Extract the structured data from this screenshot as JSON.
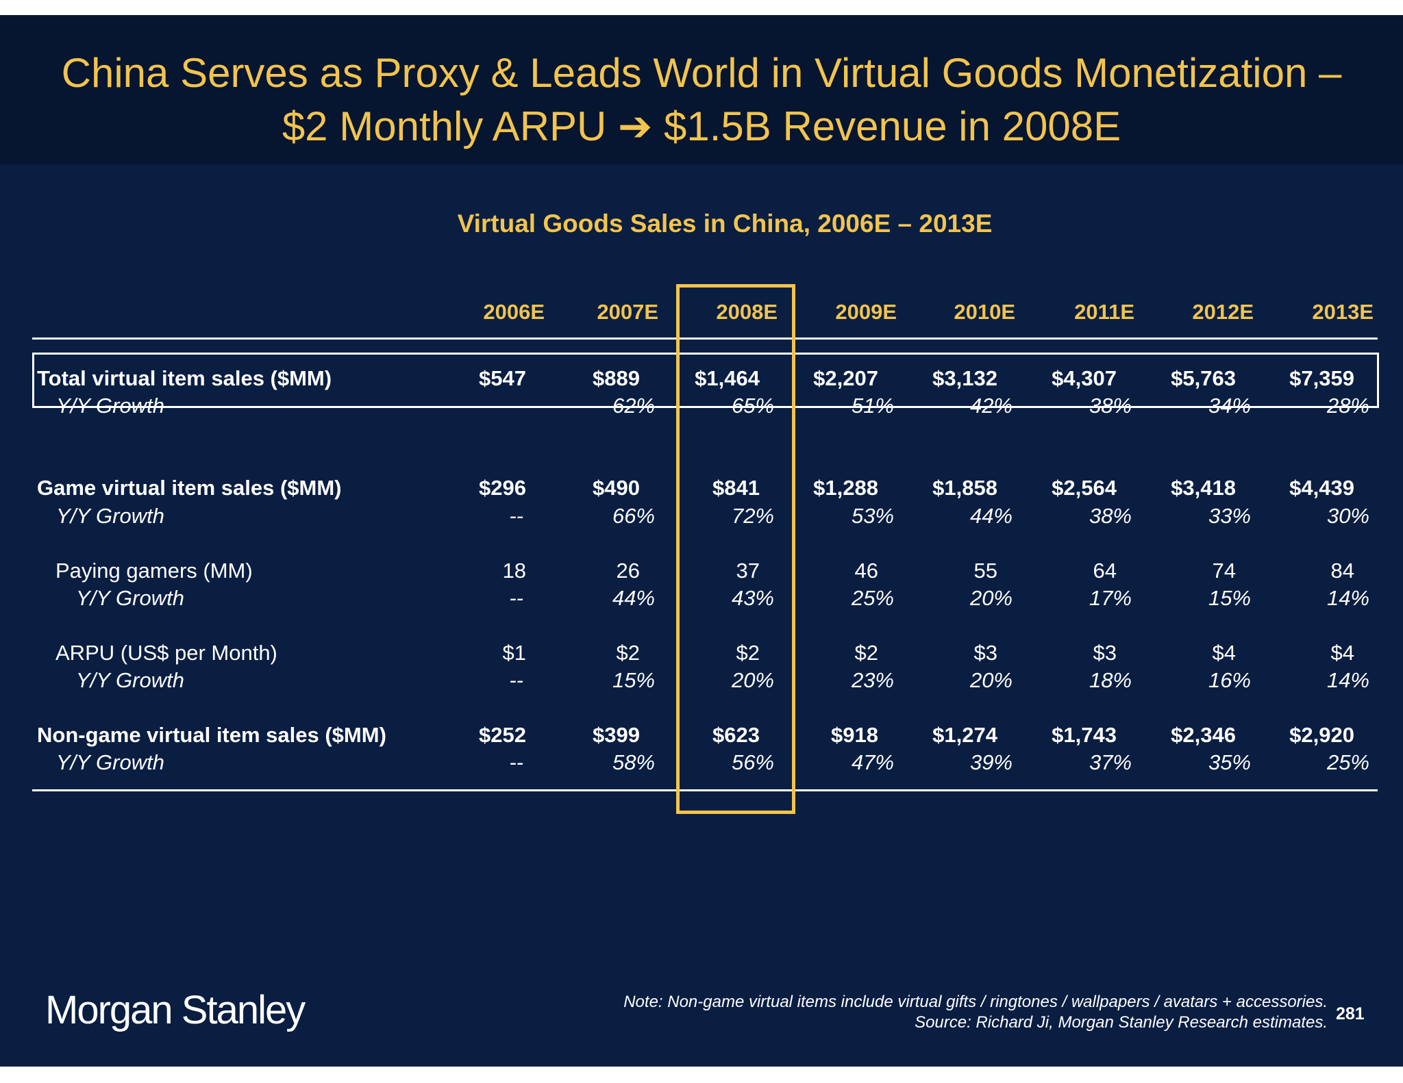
{
  "title": {
    "line1": "China Serves as Proxy & Leads World in Virtual Goods Monetization –",
    "line2": "$2 Monthly ARPU ➔ $1.5B Revenue in 2008E"
  },
  "table": {
    "title": "Virtual Goods Sales in China, 2006E – 2013E",
    "columns": [
      "2006E",
      "2007E",
      "2008E",
      "2009E",
      "2010E",
      "2011E",
      "2012E",
      "2013E"
    ],
    "highlighted_column": "2008E",
    "highlight_color": "#f2c44e",
    "rows": [
      {
        "label": "Total virtual item sales ($MM)",
        "style": "bold",
        "indent": 0,
        "values": [
          "$547",
          "$889",
          "$1,464",
          "$2,207",
          "$3,132",
          "$4,307",
          "$5,763",
          "$7,359"
        ]
      },
      {
        "label": "Y/Y Growth",
        "style": "italic",
        "indent": 1,
        "values": [
          "--",
          "62%",
          "65%",
          "51%",
          "42%",
          "38%",
          "34%",
          "28%"
        ]
      },
      {
        "label": "Game virtual item sales ($MM)",
        "style": "bold",
        "indent": 0,
        "values": [
          "$296",
          "$490",
          "$841",
          "$1,288",
          "$1,858",
          "$2,564",
          "$3,418",
          "$4,439"
        ]
      },
      {
        "label": "Y/Y Growth",
        "style": "italic",
        "indent": 1,
        "values": [
          "--",
          "66%",
          "72%",
          "53%",
          "44%",
          "38%",
          "33%",
          "30%"
        ]
      },
      {
        "label": "Paying gamers (MM)",
        "style": "normal",
        "indent": 1,
        "values": [
          "18",
          "26",
          "37",
          "46",
          "55",
          "64",
          "74",
          "84"
        ]
      },
      {
        "label": "Y/Y Growth",
        "style": "italic",
        "indent": 2,
        "values": [
          "--",
          "44%",
          "43%",
          "25%",
          "20%",
          "17%",
          "15%",
          "14%"
        ]
      },
      {
        "label": "ARPU (US$ per Month)",
        "style": "normal",
        "indent": 1,
        "values": [
          "$1",
          "$2",
          "$2",
          "$2",
          "$3",
          "$3",
          "$4",
          "$4"
        ]
      },
      {
        "label": "Y/Y Growth",
        "style": "italic",
        "indent": 2,
        "values": [
          "--",
          "15%",
          "20%",
          "23%",
          "20%",
          "18%",
          "16%",
          "14%"
        ]
      },
      {
        "label": "Non-game virtual item sales ($MM)",
        "style": "bold",
        "indent": 0,
        "values": [
          "$252",
          "$399",
          "$623",
          "$918",
          "$1,274",
          "$1,743",
          "$2,346",
          "$2,920"
        ]
      },
      {
        "label": "Y/Y Growth",
        "style": "italic",
        "indent": 1,
        "values": [
          "--",
          "58%",
          "56%",
          "47%",
          "39%",
          "37%",
          "35%",
          "25%"
        ]
      }
    ]
  },
  "footer": {
    "logo": "Morgan Stanley",
    "note": "Note: Non-game virtual items include virtual gifts / ringtones / wallpapers / avatars + accessories.",
    "source": "Source: Richard Ji, Morgan Stanley Research estimates.",
    "page_number": "281"
  }
}
